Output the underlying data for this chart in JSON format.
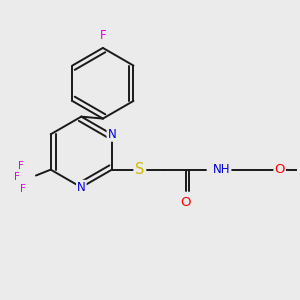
{
  "background_color": "#ebebeb",
  "bond_color": "#1a1a1a",
  "bond_width": 1.4,
  "atom_colors": {
    "F": "#e000e0",
    "N": "#0000dd",
    "S": "#ccbb00",
    "O": "#ff0000",
    "C": "#1a1a1a"
  },
  "font_size": 8.5,
  "fig_width": 3.0,
  "fig_height": 3.0,
  "dpi": 100,
  "xlim": [
    -0.3,
    2.7
  ],
  "ylim": [
    0.1,
    2.9
  ]
}
